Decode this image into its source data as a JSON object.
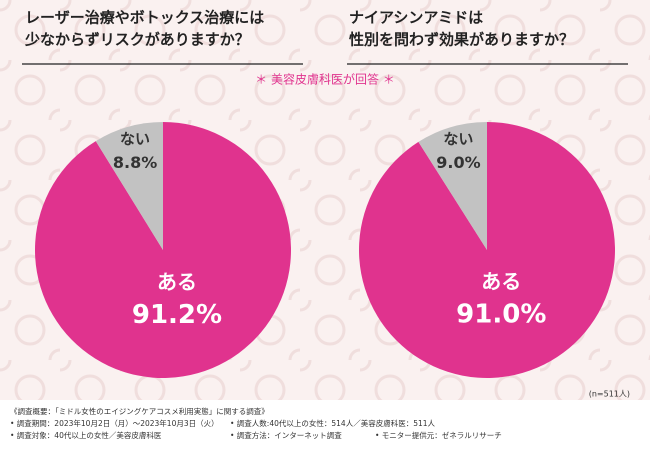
{
  "chart_data": [
    {
      "type": "pie",
      "title": [
        "レーザー治療やボトックス治療には",
        "少なからずリスクがありますか？"
      ],
      "categories": [
        "ある",
        "ない"
      ],
      "values": [
        91.2,
        8.8
      ],
      "value_labels": [
        "91.2%",
        "8.8%"
      ],
      "colors": [
        "#e0338e",
        "#c2c2c2"
      ]
    },
    {
      "type": "pie",
      "title": [
        "ナイアシンアミドは",
        "性別を問わず効果がありますか？"
      ],
      "categories": [
        "ある",
        "ない"
      ],
      "values": [
        91.0,
        9.0
      ],
      "value_labels": [
        "91.0%",
        "9.0%"
      ],
      "colors": [
        "#e0338e",
        "#c2c2c2"
      ]
    }
  ],
  "subtitle": "＊ 美容皮膚科医が回答 ＊",
  "sample_size": "(n=511人)",
  "survey": {
    "heading": "《調査概要：「ミドル女性のエイジングケアコスメ利用実態」に関する調査》",
    "items": [
      "• 調査期間：2023年10月2日（月）〜2023年10月3日（火）",
      "• 調査人数:40代以上の女性：514人／美容皮膚科医：511人",
      "• 調査対象：40代以上の女性／美容皮膚科医",
      "• 調査方法：インターネット調査",
      "• モニター提供元：ゼネラルリサーチ"
    ]
  }
}
